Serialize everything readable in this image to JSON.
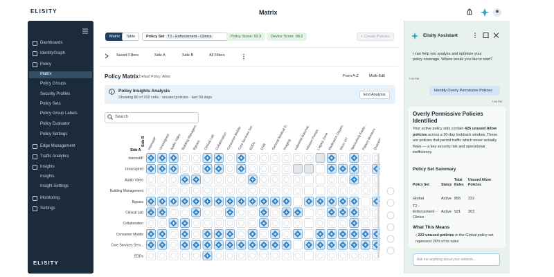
{
  "header": {
    "logo": "ELISITY",
    "title": "Matrix"
  },
  "sidebar": {
    "items": [
      "Dashboards",
      "IdentityGraph",
      "Policy",
      "Matrix",
      "Policy Groups",
      "Security Profiles",
      "Policy Sets",
      "Policy Group Labels",
      "Policy Evaluator",
      "Policy Settings",
      "Edge Management",
      "Traffic Analytics",
      "Insights",
      "Insights",
      "Insight Settings",
      "Monitoring",
      "Settings"
    ],
    "footer_logo": "ELISITY"
  },
  "toolbar": {
    "tabs": [
      "Matrix",
      "Table"
    ],
    "policy_set_label": "Policy Set",
    "policy_set": "T2 - Enforcement - Clinics",
    "policy_score": "Policy Score: 93.9",
    "device_score": "Device Score: 98.2",
    "create": "+ Create Policies"
  },
  "filters": [
    "Saved Filters",
    "Side A",
    "Side B",
    "All Filters"
  ],
  "matrix": {
    "title": "Policy Matrix",
    "default_policy": "Default Policy: Allow",
    "sort": "From A-Z",
    "multi_edit": "Multi-Edit",
    "insight_title": "Policy Insights Analysis",
    "insight_text": "Showing 80 of 203 cells - unused policies - last 30 days",
    "end_analysis": "End Analysis",
    "search": "Search",
    "side_b": "Side B",
    "side_a": "Side A",
    "columns": [
      "InternetIP",
      "Unassigned",
      "Audio Video",
      "Building Managem...",
      "Bypass",
      "Clinical Lab",
      "Collaboration",
      "Consumer Mobile",
      "Core Services Ser...",
      "EDDs",
      "EHR",
      "General Medical D...",
      "Imaging",
      "Industrial Automat...",
      "Infusion Pumps",
      "Legacy Zone",
      "Medication Dispen...",
      "Micro IoT",
      "Networking Equip...",
      "Patient Monitors",
      "Quarantine"
    ],
    "rows": [
      "InternetIP",
      "Unassigned",
      "Audio Video",
      "Building Management",
      "Bypass",
      "Clinical Lab",
      "Collaboration",
      "Consumer Mobile",
      "Core Services Serv...",
      "EDDs"
    ]
  },
  "assistant": {
    "title": "Elisity Assistant",
    "greeting": "I can help you analyze and optimize your policy coverage. Where would you like to start?",
    "greeting_time": "7:06 PM",
    "user_message": "Identify Overly Permissive Policies",
    "user_time": "7:48 PM",
    "heading": "Overly Permissive Policies Identified",
    "paragraph": [
      "Your active policy sets contain ",
      "425 unused Allow policies",
      " across a 30-day lookback window. These are policies that permit traffic which never actually flows — a key security risk and operational inefficiency."
    ],
    "summary_title": "Policy Set Summary",
    "table": {
      "headers": [
        "Policy Set",
        "Status",
        "Total Rules",
        "Unused Allow Policies"
      ],
      "rows": [
        [
          "Global",
          "Active",
          856,
          222
        ],
        [
          "T2 - Enforcement - Clinics",
          "Active",
          921,
          203
        ]
      ]
    },
    "means_title": "What This Means",
    "bullet": [
      "222 unused policies",
      " in the Global policy set represent 26% of its rules"
    ],
    "input_placeholder": "Ask me anything about your network..."
  }
}
